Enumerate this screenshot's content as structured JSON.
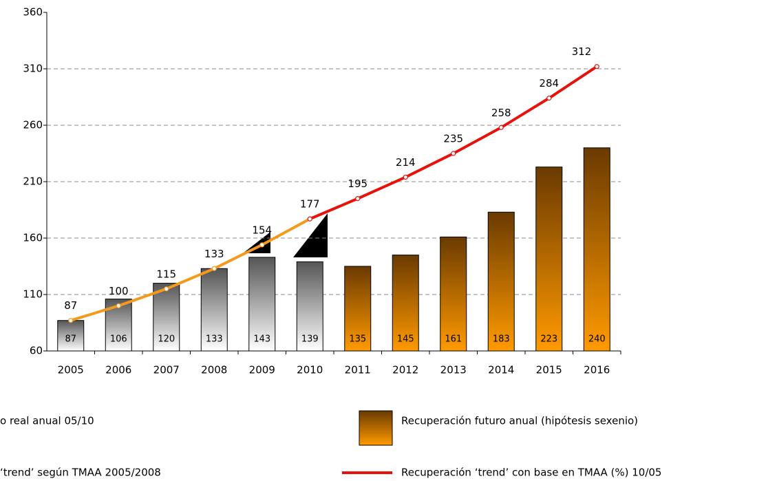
{
  "chart_data": {
    "type": "bar",
    "categories": [
      "2005",
      "2006",
      "2007",
      "2008",
      "2009",
      "2010",
      "2011",
      "2012",
      "2013",
      "2014",
      "2015",
      "2016"
    ],
    "ylim": [
      60,
      360
    ],
    "yticks": [
      60,
      110,
      160,
      210,
      260,
      310,
      360
    ],
    "grid": true,
    "series": [
      {
        "name": "o real anual 05/10",
        "kind": "bar",
        "gradient": [
          "#555555",
          "#ffffff"
        ],
        "values": [
          87,
          106,
          120,
          133,
          143,
          139,
          null,
          null,
          null,
          null,
          null,
          null
        ]
      },
      {
        "name": "Recuperación futuro anual (hipótesis sexenio)",
        "kind": "bar",
        "gradient": [
          "#6a3a00",
          "#ff9a00"
        ],
        "values": [
          null,
          null,
          null,
          null,
          null,
          null,
          135,
          145,
          161,
          183,
          223,
          240
        ]
      },
      {
        "name": "‘trend’ según TMAA 2005/2008",
        "kind": "line",
        "color": "#f39a1e",
        "values": [
          87,
          100,
          115,
          133,
          154,
          177,
          null,
          null,
          null,
          null,
          null,
          null
        ]
      },
      {
        "name": "Recuperación ‘trend’ con base en TMAA (%) 10/05",
        "kind": "line",
        "color": "#e8120c",
        "values": [
          null,
          null,
          null,
          null,
          null,
          177,
          195,
          214,
          235,
          258,
          284,
          312
        ]
      }
    ]
  }
}
